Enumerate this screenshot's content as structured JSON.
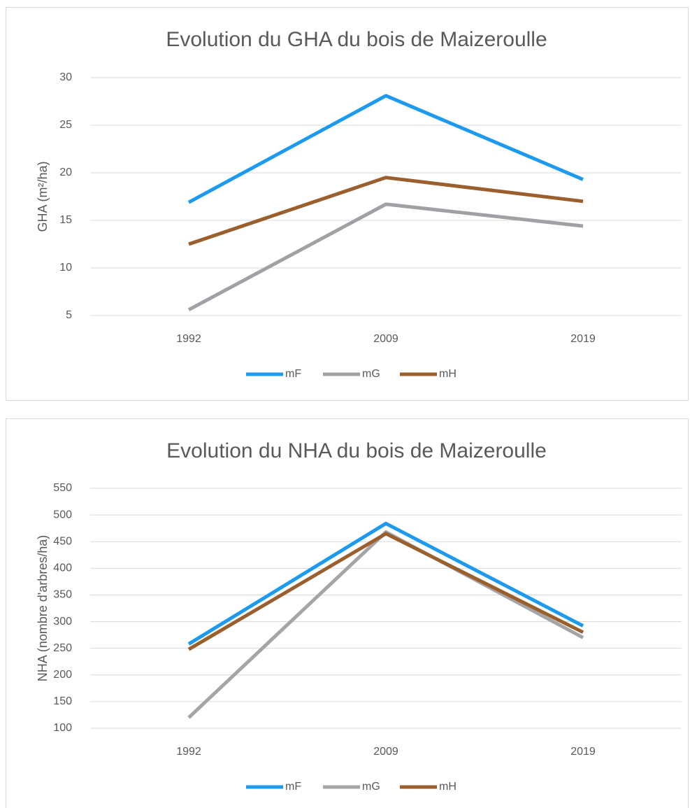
{
  "chart_data": [
    {
      "type": "line",
      "title": "Evolution du GHA du bois de Maizeroulle",
      "y_label": "GHA (m²/ha)",
      "categories": [
        "1992",
        "2009",
        "2019"
      ],
      "series": [
        {
          "name": "mF",
          "color": "#1b9af0",
          "values": [
            16.9,
            28.1,
            19.3
          ]
        },
        {
          "name": "mG",
          "color": "#a0a0a5",
          "values": [
            5.6,
            16.7,
            14.4
          ]
        },
        {
          "name": "mH",
          "color": "#9b5f2e",
          "values": [
            12.5,
            19.5,
            17.0
          ]
        }
      ],
      "ylim": [
        5,
        30
      ],
      "yticks": [
        5,
        10,
        15,
        20,
        25,
        30
      ],
      "grid": true,
      "legend": "bottom"
    },
    {
      "type": "line",
      "title": "Evolution du NHA du bois de Maizeroulle",
      "y_label": "NHA (nombre d'arbres/ha)",
      "categories": [
        "1992",
        "2009",
        "2019"
      ],
      "series": [
        {
          "name": "mF",
          "color": "#1b9af0",
          "values": [
            258,
            484,
            292
          ]
        },
        {
          "name": "mG",
          "color": "#a5a5a5",
          "values": [
            120,
            468,
            270
          ]
        },
        {
          "name": "mH",
          "color": "#9b5f2e",
          "values": [
            248,
            465,
            280
          ]
        }
      ],
      "ylim": [
        100,
        550
      ],
      "yticks": [
        100,
        150,
        200,
        250,
        300,
        350,
        400,
        450,
        500,
        550
      ],
      "grid": true,
      "legend": "bottom"
    }
  ]
}
